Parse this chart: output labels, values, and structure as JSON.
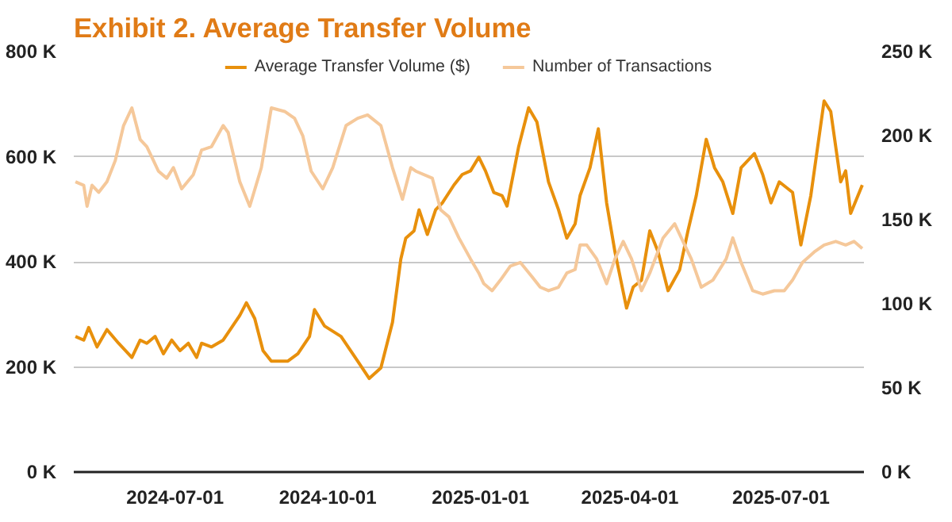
{
  "chart_data": {
    "type": "line",
    "title": "Exhibit 2. Average Transfer Volume",
    "xlim": [
      "2024-05-01",
      "2025-08-20"
    ],
    "xticks": [
      "2024-07-01",
      "2024-10-01",
      "2025-01-01",
      "2025-04-01",
      "2025-07-01"
    ],
    "ylim": [
      0,
      800000
    ],
    "yticks": [
      {
        "value": 0,
        "label": "0 K"
      },
      {
        "value": 200000,
        "label": "200 K"
      },
      {
        "value": 400000,
        "label": "400 K"
      },
      {
        "value": 600000,
        "label": "600 K"
      },
      {
        "value": 800000,
        "label": "800 K"
      }
    ],
    "y2lim": [
      0,
      250000
    ],
    "y2ticks": [
      {
        "value": 0,
        "label": "0 K"
      },
      {
        "value": 50000,
        "label": "50 K"
      },
      {
        "value": 100000,
        "label": "100 K"
      },
      {
        "value": 150000,
        "label": "150 K"
      },
      {
        "value": 200000,
        "label": "200 K"
      },
      {
        "value": 250000,
        "label": "250 K"
      }
    ],
    "grid": "y",
    "legend": "top",
    "marker": "none",
    "line_style": "solid",
    "series": [
      {
        "name": "Average Transfer Volume ($)",
        "color": "#e8900c",
        "x": [
          "2024-05-02",
          "2024-05-07",
          "2024-05-10",
          "2024-05-15",
          "2024-05-21",
          "2024-05-28",
          "2024-06-05",
          "2024-06-10",
          "2024-06-14",
          "2024-06-19",
          "2024-06-24",
          "2024-06-29",
          "2024-07-04",
          "2024-07-09",
          "2024-07-14",
          "2024-07-17",
          "2024-07-23",
          "2024-07-30",
          "2024-08-09",
          "2024-08-13",
          "2024-08-18",
          "2024-08-23",
          "2024-08-28",
          "2024-09-07",
          "2024-09-13",
          "2024-09-20",
          "2024-09-23",
          "2024-09-29",
          "2024-10-09",
          "2024-10-19",
          "2024-10-26",
          "2024-11-02",
          "2024-11-09",
          "2024-11-14",
          "2024-11-17",
          "2024-11-22",
          "2024-11-25",
          "2024-11-30",
          "2024-12-05",
          "2024-12-09",
          "2024-12-16",
          "2024-12-21",
          "2024-12-26",
          "2024-12-31",
          "2025-01-04",
          "2025-01-09",
          "2025-01-14",
          "2025-01-17",
          "2025-01-24",
          "2025-01-30",
          "2025-02-04",
          "2025-02-11",
          "2025-02-17",
          "2025-02-22",
          "2025-02-27",
          "2025-03-02",
          "2025-03-08",
          "2025-03-13",
          "2025-03-18",
          "2025-03-23",
          "2025-03-30",
          "2025-04-03",
          "2025-04-08",
          "2025-04-13",
          "2025-04-18",
          "2025-04-24",
          "2025-05-01",
          "2025-05-06",
          "2025-05-11",
          "2025-05-17",
          "2025-05-22",
          "2025-05-27",
          "2025-06-02",
          "2025-06-07",
          "2025-06-15",
          "2025-06-20",
          "2025-06-25",
          "2025-06-30",
          "2025-07-08",
          "2025-07-13",
          "2025-07-19",
          "2025-07-27",
          "2025-07-31",
          "2025-08-06",
          "2025-08-09",
          "2025-08-12",
          "2025-08-19"
        ],
        "values": [
          258000,
          251000,
          275000,
          238000,
          271000,
          245000,
          218000,
          251000,
          245000,
          258000,
          225000,
          251000,
          231000,
          245000,
          218000,
          245000,
          238000,
          251000,
          298000,
          322000,
          292000,
          231000,
          211000,
          211000,
          225000,
          258000,
          309000,
          278000,
          258000,
          211000,
          178000,
          198000,
          285000,
          405000,
          445000,
          459000,
          499000,
          452000,
          499000,
          512000,
          546000,
          566000,
          573000,
          599000,
          573000,
          532000,
          526000,
          506000,
          619000,
          693000,
          666000,
          552000,
          499000,
          445000,
          472000,
          526000,
          579000,
          653000,
          512000,
          419000,
          312000,
          352000,
          365000,
          459000,
          419000,
          345000,
          385000,
          459000,
          526000,
          633000,
          579000,
          552000,
          492000,
          579000,
          606000,
          566000,
          512000,
          552000,
          532000,
          432000,
          526000,
          706000,
          686000,
          552000,
          573000,
          492000,
          546000
        ]
      },
      {
        "name": "Number of Transactions",
        "color": "#f5c89a",
        "axis": "y2",
        "x": [
          "2024-05-02",
          "2024-05-07",
          "2024-05-09",
          "2024-05-12",
          "2024-05-16",
          "2024-05-21",
          "2024-05-26",
          "2024-05-31",
          "2024-06-05",
          "2024-06-10",
          "2024-06-14",
          "2024-06-18",
          "2024-06-21",
          "2024-06-26",
          "2024-06-30",
          "2024-07-05",
          "2024-07-12",
          "2024-07-17",
          "2024-07-23",
          "2024-07-30",
          "2024-08-02",
          "2024-08-09",
          "2024-08-15",
          "2024-08-22",
          "2024-08-28",
          "2024-09-05",
          "2024-09-11",
          "2024-09-16",
          "2024-09-21",
          "2024-09-28",
          "2024-10-04",
          "2024-10-12",
          "2024-10-19",
          "2024-10-25",
          "2024-11-02",
          "2024-11-09",
          "2024-11-15",
          "2024-11-20",
          "2024-11-23",
          "2024-12-03",
          "2024-12-08",
          "2024-12-13",
          "2024-12-19",
          "2024-12-26",
          "2024-12-31",
          "2025-01-03",
          "2025-01-08",
          "2025-01-13",
          "2025-01-19",
          "2025-01-25",
          "2025-02-01",
          "2025-02-06",
          "2025-02-11",
          "2025-02-17",
          "2025-02-22",
          "2025-02-27",
          "2025-03-02",
          "2025-03-06",
          "2025-03-12",
          "2025-03-18",
          "2025-03-23",
          "2025-03-28",
          "2025-04-02",
          "2025-04-08",
          "2025-04-13",
          "2025-04-21",
          "2025-04-28",
          "2025-05-03",
          "2025-05-08",
          "2025-05-14",
          "2025-05-21",
          "2025-05-29",
          "2025-06-02",
          "2025-06-07",
          "2025-06-14",
          "2025-06-20",
          "2025-06-27",
          "2025-07-03",
          "2025-07-08",
          "2025-07-14",
          "2025-07-21",
          "2025-07-27",
          "2025-08-03",
          "2025-08-09",
          "2025-08-14",
          "2025-08-19"
        ],
        "values": [
          172600,
          170500,
          158000,
          170500,
          166300,
          172600,
          185200,
          206000,
          216500,
          197700,
          193500,
          185200,
          178900,
          174700,
          181000,
          168400,
          176800,
          191400,
          193500,
          206000,
          201900,
          172600,
          158000,
          181000,
          216500,
          214400,
          210300,
          199800,
          178900,
          168400,
          181000,
          206000,
          210300,
          212300,
          206000,
          181000,
          162200,
          181000,
          178900,
          174700,
          155900,
          151700,
          139200,
          126700,
          118300,
          112000,
          107800,
          114100,
          122500,
          124600,
          116200,
          109900,
          107800,
          109900,
          118300,
          120400,
          135000,
          135000,
          126700,
          112000,
          126700,
          137100,
          126700,
          107800,
          118300,
          139200,
          147600,
          137100,
          126700,
          109900,
          114100,
          126700,
          139200,
          124600,
          107800,
          105800,
          107800,
          107800,
          114100,
          124600,
          130800,
          135000,
          137100,
          135000,
          137100,
          132900
        ]
      }
    ]
  }
}
